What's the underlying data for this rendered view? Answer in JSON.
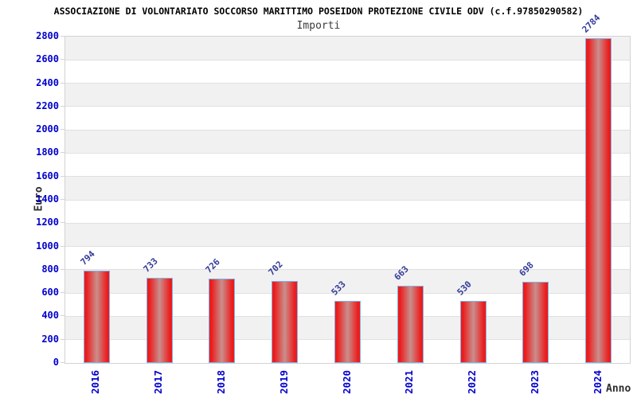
{
  "header": {
    "title": "ASSOCIAZIONE DI VOLONTARIATO SOCCORSO MARITTIMO POSEIDON PROTEZIONE CIVILE ODV (c.f.97850290582)",
    "subtitle": "Importi"
  },
  "chart_data": {
    "type": "bar",
    "title": "Importi",
    "categories": [
      "2016",
      "2017",
      "2018",
      "2019",
      "2020",
      "2021",
      "2022",
      "2023",
      "2024"
    ],
    "values": [
      794,
      733,
      726,
      702,
      533,
      663,
      530,
      698,
      2784
    ],
    "xlabel": "Anno",
    "ylabel": "Euro",
    "ylim": [
      0,
      2800
    ],
    "ytick_step": 200,
    "yticks": [
      0,
      200,
      400,
      600,
      800,
      1000,
      1200,
      1400,
      1600,
      1800,
      2000,
      2200,
      2400,
      2600,
      2800
    ],
    "grid": true,
    "banded_background": true,
    "legend": null,
    "value_labels_rotation_deg": -45,
    "category_labels_rotation_deg": -90
  },
  "colors": {
    "bar_red": "#ec1c1c",
    "bar_center": "#c98f8d",
    "bar_border": "#7fb2e5",
    "tick_label_blue": "#0000cc",
    "value_label_blue": "#333a99",
    "band_gray": "#f1f1f1",
    "grid_line": "#e0e0e0",
    "plot_border": "#d3d3d3",
    "title_color": "#000000",
    "subtitle_color": "#3c3c3c",
    "axis_title_color": "#2e2e2e"
  }
}
